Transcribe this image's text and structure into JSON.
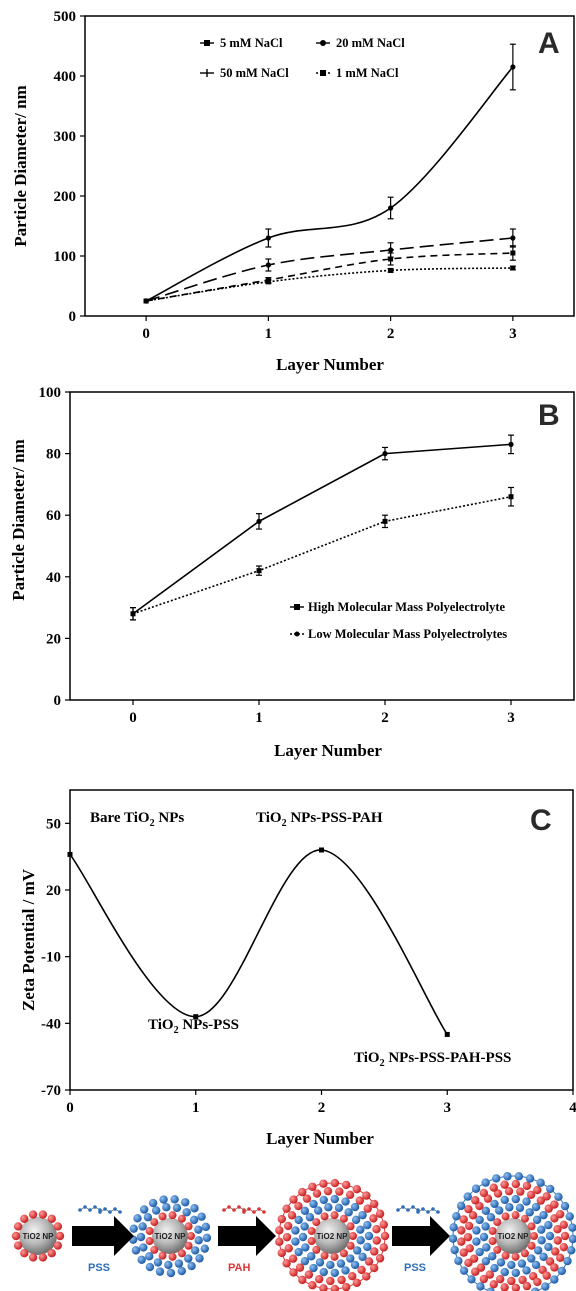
{
  "chart_data": [
    {
      "panel": "A",
      "type": "line",
      "xlabel": "Layer Number",
      "ylabel": "Particle Diameter/ nm",
      "x": [
        0,
        1,
        2,
        3
      ],
      "xticks": [
        "0",
        "1",
        "2",
        "3"
      ],
      "yticks": [
        "0",
        "100",
        "200",
        "300",
        "400",
        "500"
      ],
      "xlim": [
        -0.5,
        3.5
      ],
      "ylim": [
        0,
        500
      ],
      "legend_position": "top",
      "series": [
        {
          "name": "5 mM NaCl",
          "values": [
            25,
            85,
            110,
            130
          ],
          "errors": [
            0,
            10,
            12,
            15
          ],
          "style": "dashed-long"
        },
        {
          "name": "20 mM NaCl",
          "values": [
            25,
            60,
            95,
            105
          ],
          "errors": [
            0,
            4,
            10,
            12
          ],
          "style": "dashed-short"
        },
        {
          "name": "50 mM NaCl",
          "values": [
            25,
            130,
            180,
            415
          ],
          "errors": [
            0,
            15,
            18,
            38
          ],
          "style": "solid"
        },
        {
          "name": "1 mM NaCl",
          "values": [
            25,
            57,
            76,
            80
          ],
          "errors": [
            0,
            3,
            3,
            3
          ],
          "style": "dotted"
        }
      ]
    },
    {
      "panel": "B",
      "type": "line",
      "xlabel": "Layer Number",
      "ylabel": "Particle Diameter/ nm",
      "x": [
        0,
        1,
        2,
        3
      ],
      "xticks": [
        "0",
        "1",
        "2",
        "3"
      ],
      "yticks": [
        "0",
        "20",
        "40",
        "60",
        "80",
        "100"
      ],
      "xlim": [
        -0.5,
        3.5
      ],
      "ylim": [
        0,
        100
      ],
      "legend_position": "bottom-right",
      "series": [
        {
          "name": "High Molecular Mass Polyelectrolyte",
          "values": [
            28,
            58,
            80,
            83
          ],
          "errors": [
            2,
            2.5,
            2,
            3
          ],
          "style": "solid"
        },
        {
          "name": "Low Molecular Mass Polyelectrolytes",
          "values": [
            28,
            42,
            58,
            66
          ],
          "errors": [
            2,
            1.5,
            2,
            3
          ],
          "style": "dotted"
        }
      ]
    },
    {
      "panel": "C",
      "type": "line",
      "xlabel": "Layer Number",
      "ylabel": "Zeta Potential / mV",
      "x": [
        0,
        1,
        2,
        3
      ],
      "xticks": [
        "0",
        "1",
        "2",
        "3",
        "4"
      ],
      "yticks": [
        "-70",
        "-40",
        "-10",
        "20",
        "50"
      ],
      "xlim": [
        0,
        4
      ],
      "ylim": [
        -70,
        65
      ],
      "series": [
        {
          "name": "",
          "values": [
            36,
            -37,
            38,
            -45
          ]
        }
      ],
      "annotations": [
        "Bare TiO2 NPs",
        "TiO2 NPs-PSS",
        "TiO2 NPs-PSS-PAH",
        "TiO2 NPs-PSS-PAH-PSS"
      ]
    }
  ],
  "schematic": {
    "np_label": "TiO2 NP",
    "step_labels": [
      "PSS",
      "PAH",
      "PSS"
    ],
    "colors": {
      "pss": "#2f6fb7",
      "pah": "#e03434",
      "core": "#b8b8b8"
    }
  },
  "text": {
    "a_letter": "A",
    "b_letter": "B",
    "c_letter": "C"
  }
}
